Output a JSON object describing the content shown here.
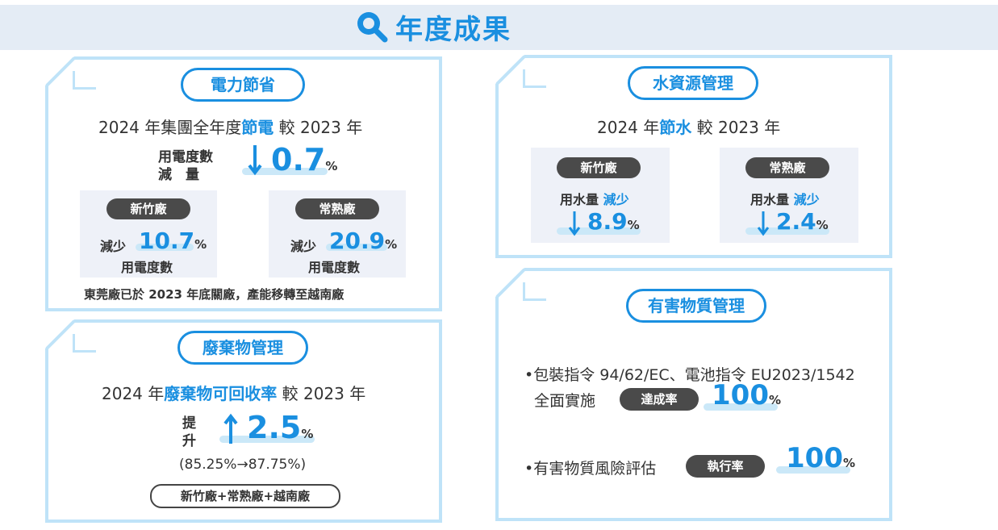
{
  "header": {
    "title": "年度成果"
  },
  "power": {
    "title": "電力節省",
    "summary_pre": "2024 年集團全年度",
    "summary_hl": "節電",
    "summary_post": " 較 2023 年",
    "metric_label_1": "用電度數",
    "metric_label_2": "減　量",
    "value": "0.7",
    "unit": "%",
    "plants": [
      {
        "name": "新竹廠",
        "prefix": "減少",
        "value": "10.7",
        "unit": "%",
        "label": "用電度數"
      },
      {
        "name": "常熟廠",
        "prefix": "減少",
        "value": "20.9",
        "unit": "%",
        "label": "用電度數"
      }
    ],
    "note": "東莞廠已於 2023 年底關廠，產能移轉至越南廠"
  },
  "waste": {
    "title": "廢棄物管理",
    "summary_pre": "2024 年",
    "summary_hl": "廢棄物可回收率",
    "summary_post": " 較 2023 年",
    "metric_label": "提\n升",
    "value": "2.5",
    "unit": "%",
    "range": "(85.25%→87.75%)",
    "scope": "新竹廠+常熟廠+越南廠"
  },
  "water": {
    "title": "水資源管理",
    "summary_pre": "2024 年",
    "summary_hl": "節水",
    "summary_post": " 較 2023 年",
    "plants": [
      {
        "name": "新竹廠",
        "label": "用水量",
        "label_hl": "減少",
        "value": "8.9",
        "unit": "%"
      },
      {
        "name": "常熟廠",
        "label": "用水量",
        "label_hl": "減少",
        "value": "2.4",
        "unit": "%"
      }
    ]
  },
  "hazard": {
    "title": "有害物質管理",
    "item1_line1": "•包裝指令 94/62/EC、電池指令 EU2023/1542",
    "item1_line2": "全面實施",
    "item1_tag": "達成率",
    "item1_value": "100",
    "item1_unit": "%",
    "item2_text": "•有害物質風險評估",
    "item2_tag": "執行率",
    "item2_value": "100",
    "item2_unit": "%"
  },
  "colors": {
    "accent": "#1a8fe0",
    "border": "#bfe3f8",
    "banner": "#e4ecf5",
    "tag": "#4a4a4a",
    "panel": "#eef1f8"
  }
}
